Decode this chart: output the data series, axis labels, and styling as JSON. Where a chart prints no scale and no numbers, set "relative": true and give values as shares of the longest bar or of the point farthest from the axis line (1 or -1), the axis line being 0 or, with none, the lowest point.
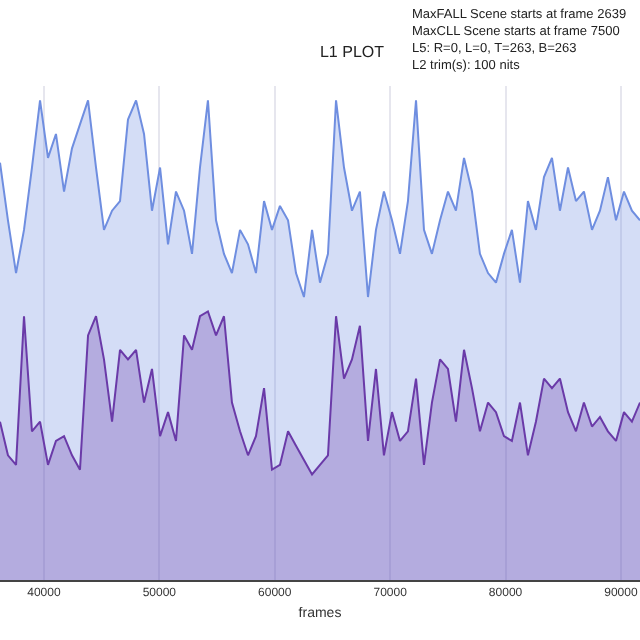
{
  "chart_data": {
    "type": "area",
    "title": "L1 PLOT",
    "xlabel": "frames",
    "annotations": [
      "MaxFALL Scene starts at frame 2639\nMaxCLL Scene starts at frame 7500\nL5: R=0, L=0, T=263, B=263\nL2 trim(s): 100 nits"
    ],
    "relative": true,
    "grid": "x",
    "xlim": [
      36190,
      91650
    ],
    "xticks": [
      40000,
      50000,
      60000,
      70000,
      80000,
      90000
    ],
    "x": [
      36190,
      36880,
      37580,
      38270,
      38960,
      39660,
      40350,
      41040,
      41740,
      42430,
      43120,
      43820,
      44510,
      45200,
      45900,
      46590,
      47280,
      47980,
      48670,
      49360,
      50060,
      50750,
      51440,
      52140,
      52830,
      53520,
      54210,
      54910,
      55600,
      56290,
      56990,
      57680,
      58370,
      59070,
      59760,
      60450,
      61150,
      61840,
      62530,
      63230,
      63920,
      64610,
      65310,
      66000,
      66690,
      67380,
      68080,
      68770,
      69460,
      70160,
      70850,
      71540,
      72240,
      72930,
      73620,
      74320,
      75010,
      75700,
      76400,
      77090,
      77780,
      78480,
      79170,
      79860,
      80550,
      81250,
      81940,
      82630,
      83330,
      84020,
      84710,
      85410,
      86100,
      86790,
      87490,
      88180,
      88870,
      89570,
      90260,
      90950,
      91650
    ],
    "series": [
      {
        "color": "#6f8ee0",
        "values": [
          0.87,
          0.75,
          0.64,
          0.73,
          0.86,
          1,
          0.88,
          0.93,
          0.81,
          0.9,
          0.95,
          1,
          0.86,
          0.73,
          0.77,
          0.79,
          0.96,
          1,
          0.93,
          0.77,
          0.86,
          0.7,
          0.81,
          0.77,
          0.68,
          0.86,
          1,
          0.75,
          0.68,
          0.64,
          0.73,
          0.7,
          0.64,
          0.79,
          0.73,
          0.78,
          0.75,
          0.64,
          0.59,
          0.73,
          0.62,
          0.68,
          1,
          0.86,
          0.77,
          0.81,
          0.59,
          0.73,
          0.81,
          0.75,
          0.68,
          0.79,
          1,
          0.73,
          0.68,
          0.75,
          0.81,
          0.77,
          0.88,
          0.81,
          0.68,
          0.64,
          0.62,
          0.68,
          0.73,
          0.62,
          0.79,
          0.73,
          0.84,
          0.88,
          0.77,
          0.86,
          0.79,
          0.81,
          0.73,
          0.77,
          0.84,
          0.75,
          0.81,
          0.77,
          0.75
        ]
      },
      {
        "color": "#6a3aa8",
        "values": [
          0.33,
          0.26,
          0.24,
          0.55,
          0.31,
          0.33,
          0.24,
          0.29,
          0.3,
          0.26,
          0.23,
          0.51,
          0.55,
          0.46,
          0.33,
          0.48,
          0.46,
          0.48,
          0.37,
          0.44,
          0.3,
          0.35,
          0.29,
          0.51,
          0.48,
          0.55,
          0.56,
          0.51,
          0.55,
          0.37,
          0.31,
          0.26,
          0.3,
          0.4,
          0.23,
          0.24,
          0.31,
          0.28,
          0.25,
          0.22,
          0.24,
          0.26,
          0.55,
          0.42,
          0.46,
          0.53,
          0.29,
          0.44,
          0.26,
          0.35,
          0.29,
          0.31,
          0.42,
          0.24,
          0.37,
          0.46,
          0.44,
          0.33,
          0.48,
          0.4,
          0.31,
          0.37,
          0.35,
          0.3,
          0.29,
          0.37,
          0.26,
          0.33,
          0.42,
          0.4,
          0.42,
          0.35,
          0.31,
          0.37,
          0.32,
          0.34,
          0.31,
          0.29,
          0.35,
          0.33,
          0.37
        ]
      }
    ]
  }
}
